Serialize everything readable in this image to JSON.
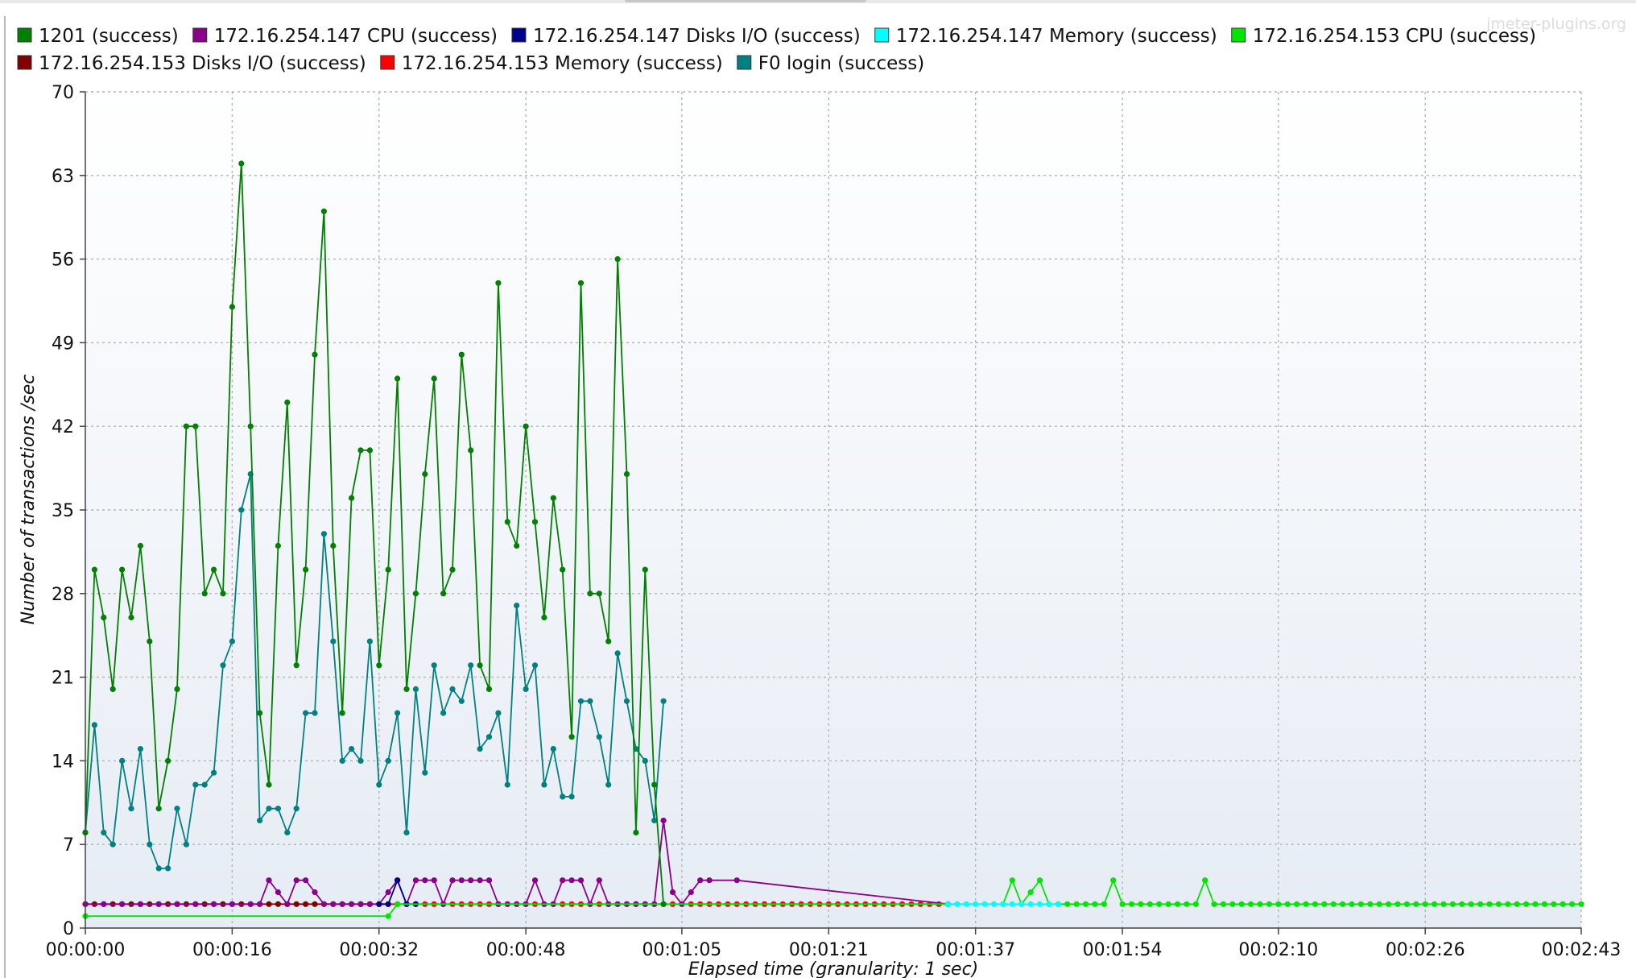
{
  "watermark": "jmeter-plugins.org",
  "chart_data": {
    "type": "line",
    "xlabel": "Elapsed time (granularity: 1 sec)",
    "ylabel": "Number of transactions /sec",
    "xlim": [
      0,
      163
    ],
    "ylim": [
      0,
      70
    ],
    "yticks": [
      0,
      7,
      14,
      21,
      28,
      35,
      42,
      49,
      56,
      63,
      70
    ],
    "xticks": [
      0,
      16,
      32,
      48,
      65,
      81,
      97,
      113,
      130,
      146,
      163
    ],
    "xtick_labels": [
      "00:00:00",
      "00:00:16",
      "00:00:32",
      "00:00:48",
      "00:01:05",
      "00:01:21",
      "00:01:37",
      "00:01:54",
      "00:02:10",
      "00:02:26",
      "00:02:43"
    ],
    "grid": true,
    "legend_position": "top",
    "series": [
      {
        "name": "1201  (success)",
        "color": "#008000",
        "x": [
          0,
          1,
          2,
          3,
          4,
          5,
          6,
          7,
          8,
          9,
          10,
          11,
          12,
          13,
          14,
          15,
          16,
          17,
          18,
          19,
          20,
          21,
          22,
          23,
          24,
          25,
          26,
          27,
          28,
          29,
          30,
          31,
          32,
          33,
          34,
          35,
          36,
          37,
          38,
          39,
          40,
          41,
          42,
          43,
          44,
          45,
          46,
          47,
          48,
          49,
          50,
          51,
          52,
          53,
          54,
          55,
          56,
          57,
          58,
          59,
          60,
          61,
          62,
          63
        ],
        "values": [
          8,
          30,
          26,
          20,
          30,
          26,
          32,
          24,
          10,
          14,
          20,
          42,
          42,
          28,
          30,
          28,
          52,
          64,
          42,
          18,
          12,
          32,
          44,
          22,
          30,
          48,
          60,
          32,
          18,
          36,
          40,
          40,
          22,
          30,
          46,
          20,
          28,
          38,
          46,
          28,
          30,
          48,
          40,
          22,
          20,
          54,
          34,
          32,
          42,
          34,
          26,
          36,
          30,
          16,
          54,
          28,
          28,
          24,
          56,
          38,
          8,
          30,
          12,
          2
        ]
      },
      {
        "name": "172.16.254.147 CPU (success)",
        "color": "#8b008b",
        "x": [
          0,
          2,
          4,
          6,
          8,
          10,
          12,
          14,
          16,
          18,
          19,
          20,
          21,
          22,
          23,
          24,
          25,
          26,
          27,
          28,
          29,
          30,
          31,
          32,
          33,
          34,
          35,
          36,
          37,
          38,
          39,
          40,
          41,
          42,
          43,
          44,
          45,
          46,
          47,
          48,
          49,
          50,
          51,
          52,
          53,
          54,
          55,
          56,
          57,
          58,
          59,
          60,
          61,
          62,
          63,
          64,
          65,
          66,
          67,
          68,
          71,
          94
        ],
        "values": [
          2,
          2,
          2,
          2,
          2,
          2,
          2,
          2,
          2,
          2,
          2,
          4,
          3,
          2,
          4,
          4,
          3,
          2,
          2,
          2,
          2,
          2,
          2,
          2,
          3,
          4,
          2,
          4,
          4,
          4,
          2,
          4,
          4,
          4,
          4,
          4,
          2,
          2,
          2,
          2,
          4,
          2,
          2,
          4,
          4,
          4,
          2,
          4,
          2,
          2,
          2,
          2,
          2,
          2,
          9,
          3,
          2,
          3,
          4,
          4,
          4,
          2
        ]
      },
      {
        "name": "172.16.254.147 Disks I/O (success)",
        "color": "#00008b",
        "x": [
          32,
          33,
          34,
          35,
          36
        ],
        "values": [
          2,
          2,
          4,
          2,
          2
        ]
      },
      {
        "name": "172.16.254.147 Memory (success)",
        "color": "#00ffff",
        "x": [
          94,
          95,
          96,
          97,
          98,
          99,
          100,
          101,
          102,
          103,
          104,
          105,
          106
        ],
        "values": [
          2,
          2,
          2,
          2,
          2,
          2,
          2,
          2,
          2,
          2,
          2,
          2,
          2
        ]
      },
      {
        "name": "172.16.254.153 CPU (success)",
        "color": "#00e600",
        "x": [
          0,
          33,
          34,
          100,
          101,
          102,
          103,
          104,
          105,
          106,
          107,
          108,
          109,
          110,
          111,
          112,
          113,
          114,
          115,
          116,
          117,
          118,
          119,
          120,
          121,
          122,
          123,
          124,
          125,
          126,
          127,
          128,
          129,
          130,
          131,
          132,
          133,
          134,
          135,
          136,
          137,
          138,
          139,
          140,
          141,
          142,
          143,
          144,
          145,
          146,
          147,
          148,
          149,
          150,
          151,
          152,
          153,
          154,
          155,
          156,
          157,
          158,
          159,
          160,
          161,
          162,
          163
        ],
        "values": [
          1,
          1,
          2,
          2,
          4,
          2,
          3,
          4,
          2,
          2,
          2,
          2,
          2,
          2,
          2,
          4,
          2,
          2,
          2,
          2,
          2,
          2,
          2,
          2,
          2,
          4,
          2,
          2,
          2,
          2,
          2,
          2,
          2,
          2,
          2,
          2,
          2,
          2,
          2,
          2,
          2,
          2,
          2,
          2,
          2,
          2,
          2,
          2,
          2,
          2,
          2,
          2,
          2,
          2,
          2,
          2,
          2,
          2,
          2,
          2,
          2,
          2,
          2,
          2,
          2,
          2,
          2
        ]
      },
      {
        "name": "172.16.254.153 Disks I/O (success)",
        "color": "#800000",
        "x": [
          0,
          1,
          2,
          3,
          4,
          5,
          6,
          7,
          8,
          9,
          10,
          11,
          12,
          13,
          14,
          15,
          16,
          17,
          18,
          19,
          20,
          21,
          22,
          23,
          24,
          25,
          26,
          27,
          28,
          29,
          30,
          31
        ],
        "values": [
          2,
          2,
          2,
          2,
          2,
          2,
          2,
          2,
          2,
          2,
          2,
          2,
          2,
          2,
          2,
          2,
          2,
          2,
          2,
          2,
          2,
          2,
          2,
          2,
          2,
          2,
          2,
          2,
          2,
          2,
          2,
          2
        ]
      },
      {
        "name": "172.16.254.153 Memory (success)",
        "color": "#ff0000",
        "x": [
          30,
          31,
          32,
          33,
          34,
          35,
          36,
          37,
          38,
          39,
          40,
          41,
          42,
          43,
          44,
          45,
          46,
          47,
          48,
          49,
          50,
          51,
          52,
          53,
          54,
          55,
          56,
          57,
          58,
          59,
          60,
          61,
          62,
          63,
          64,
          65,
          66,
          67,
          68,
          69,
          70,
          71,
          72,
          73,
          74,
          75,
          76,
          77,
          78,
          79,
          80,
          81,
          82,
          83,
          84,
          85,
          86,
          87,
          88,
          89,
          90,
          91,
          92,
          93,
          94
        ],
        "values": [
          2,
          2,
          2,
          2,
          2,
          2,
          2,
          2,
          2,
          2,
          2,
          2,
          2,
          2,
          2,
          2,
          2,
          2,
          2,
          2,
          2,
          2,
          2,
          2,
          2,
          2,
          2,
          2,
          2,
          2,
          2,
          2,
          2,
          2,
          2,
          2,
          2,
          2,
          2,
          2,
          2,
          2,
          2,
          2,
          2,
          2,
          2,
          2,
          2,
          2,
          2,
          2,
          2,
          2,
          2,
          2,
          2,
          2,
          2,
          2,
          2,
          2,
          2,
          2,
          2
        ]
      },
      {
        "name": "F0 login (success)",
        "color": "#008080",
        "x": [
          0,
          1,
          2,
          3,
          4,
          5,
          6,
          7,
          8,
          9,
          10,
          11,
          12,
          13,
          14,
          15,
          16,
          17,
          18,
          19,
          20,
          21,
          22,
          23,
          24,
          25,
          26,
          27,
          28,
          29,
          30,
          31,
          32,
          33,
          34,
          35,
          36,
          37,
          38,
          39,
          40,
          41,
          42,
          43,
          44,
          45,
          46,
          47,
          48,
          49,
          50,
          51,
          52,
          53,
          54,
          55,
          56,
          57,
          58,
          59,
          60,
          61,
          62,
          63
        ],
        "values": [
          8,
          17,
          8,
          7,
          14,
          10,
          15,
          7,
          5,
          5,
          10,
          7,
          12,
          12,
          13,
          22,
          24,
          35,
          38,
          9,
          10,
          10,
          8,
          10,
          18,
          18,
          33,
          24,
          14,
          15,
          14,
          24,
          12,
          14,
          18,
          8,
          20,
          13,
          22,
          18,
          20,
          19,
          22,
          15,
          16,
          18,
          12,
          27,
          20,
          22,
          12,
          15,
          11,
          11,
          19,
          19,
          16,
          12,
          23,
          19,
          15,
          14,
          9,
          19
        ]
      }
    ]
  }
}
